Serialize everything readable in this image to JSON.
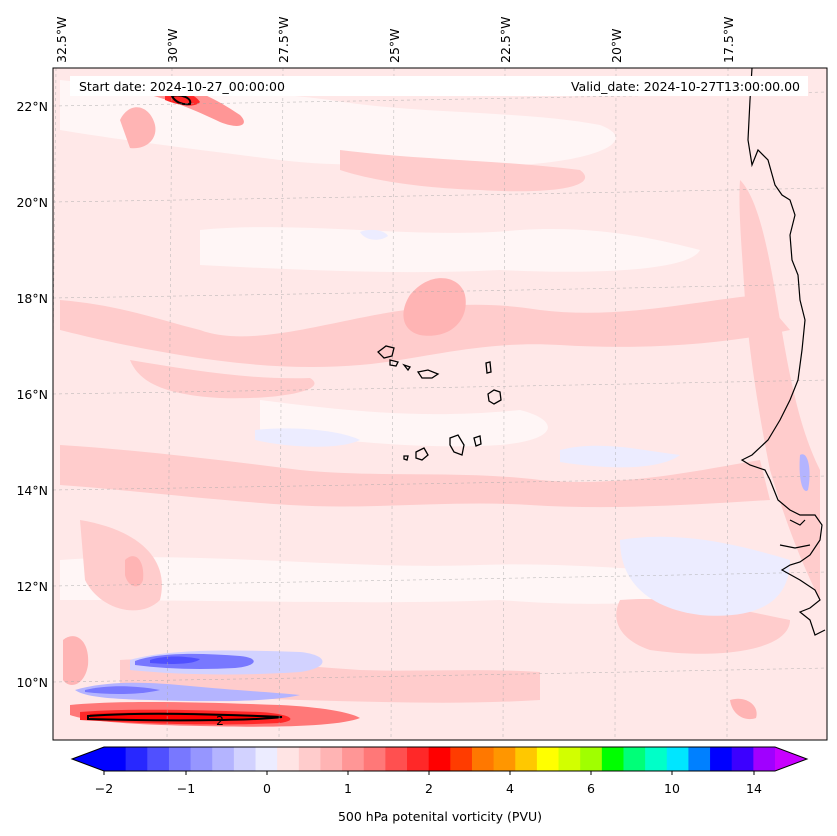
{
  "header": {
    "start_date": "Start date: 2024-10-27_00:00:00",
    "valid_date": "Valid_date: 2024-10-27T13:00:00.00"
  },
  "map": {
    "variable": "500 hPa potential vorticity",
    "region": "Eastern tropical North Atlantic, Cape Verde and West African coast",
    "lon_labels": [
      "32.5°W",
      "30°W",
      "27.5°W",
      "25°W",
      "22.5°W",
      "20°W",
      "17.5°W"
    ],
    "lat_labels": [
      "22°N",
      "20°N",
      "18°N",
      "16°N",
      "14°N",
      "12°N",
      "10°N"
    ],
    "contour_label": "2",
    "gridlines": true
  },
  "colorbar": {
    "label": "500 hPa potenital vorticity (PVU)",
    "ticks": [
      "−2",
      "−1",
      "0",
      "1",
      "2",
      "4",
      "6",
      "10",
      "14"
    ],
    "colors": [
      "#0000ff",
      "#2828ff",
      "#5050ff",
      "#7878ff",
      "#9696ff",
      "#b4b4ff",
      "#d2d2ff",
      "#ececff",
      "#ffe4e4",
      "#ffcccc",
      "#ffb4b4",
      "#ff9696",
      "#ff7878",
      "#ff5050",
      "#ff2828",
      "#ff0000",
      "#ff3c00",
      "#ff7800",
      "#ff9600",
      "#ffc800",
      "#ffff00",
      "#d2ff00",
      "#a0ff00",
      "#00ff00",
      "#00ff78",
      "#00ffc8",
      "#00e6ff",
      "#0080ff",
      "#0000ff",
      "#3c00ff",
      "#a000ff"
    ],
    "under_color": "#0000ff",
    "over_color": "#c800ff"
  }
}
